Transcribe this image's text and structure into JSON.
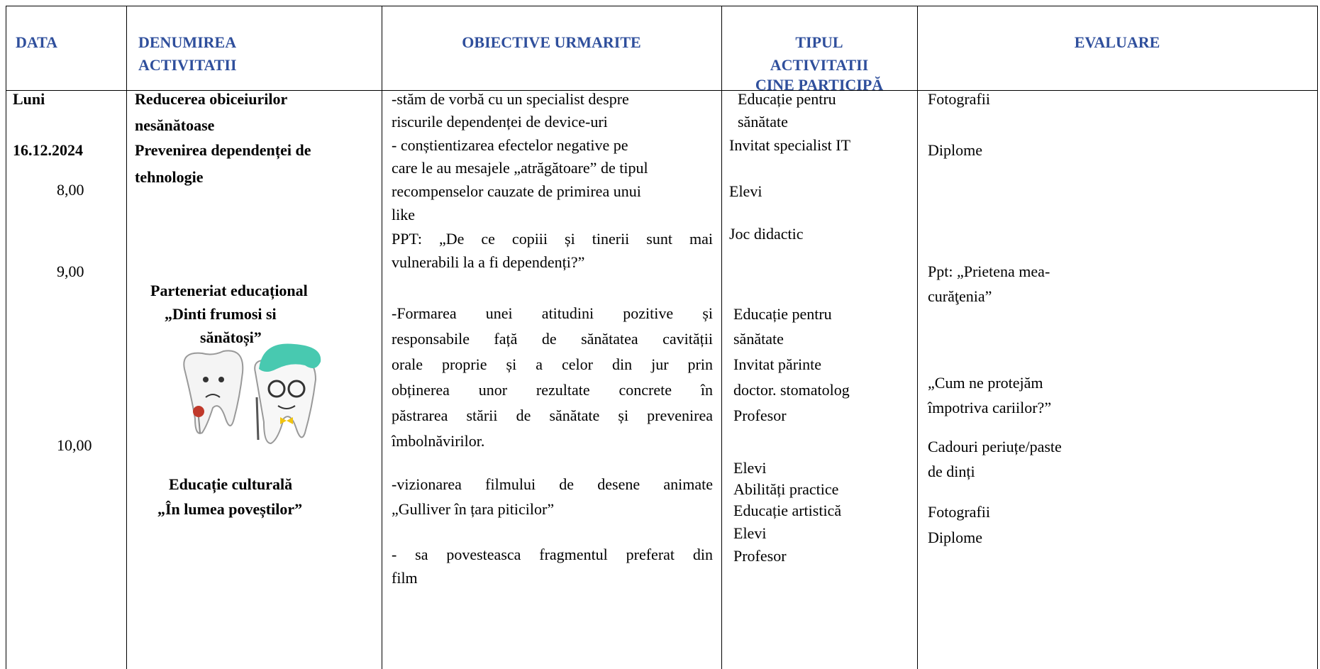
{
  "table": {
    "header": [
      [
        "DATA"
      ],
      [
        "DENUMIREA",
        "ACTIVITATII"
      ],
      [
        "OBIECTIVE URMARITE"
      ],
      [
        "TIPUL",
        "ACTIVITATII",
        "CINE PARTICIPĂ"
      ],
      [
        "EVALUARE"
      ]
    ],
    "rows": [
      [
        [
          "Luni",
          "16.12.2024",
          "8,00",
          "9,00",
          "10,00"
        ],
        [
          "Reducerea obiceiurilor",
          "nesănătoase",
          "Prevenirea dependenței de",
          "tehnologie",
          "Parteneriat educațional",
          "„Dinti frumosi si",
          "sănătoși”",
          "Educație culturală",
          "„În lumea poveștilor”"
        ],
        [
          "-stăm de vorbă cu un specialist despre",
          "riscurile dependenței de device-uri",
          "- conștientizarea efectelor negative pe",
          "care le au mesajele „atrăgătoare” de tipul",
          "recompenselor cauzate de primirea unui",
          "like",
          "PPT: „De ce copiii și tinerii sunt mai",
          "vulnerabili la a fi dependenți?”",
          "-Formarea unei atitudini pozitive și",
          "responsabile față de sănătatea cavității",
          "orale proprie și a celor din jur prin",
          "obținerea unor rezultate concrete în",
          "păstrarea stării de sănătate și prevenirea",
          "îmbolnăvirilor.",
          "-vizionarea filmului de desene animate",
          "„Gulliver în țara piticilor”",
          "- sa povesteasca fragmentul preferat din",
          "film"
        ],
        [
          "Educație pentru",
          "sănătate",
          "Invitat specialist IT",
          "Elevi",
          "Joc didactic",
          "Educație pentru",
          "sănătate",
          "Invitat părinte",
          "doctor. stomatolog",
          "Profesor",
          "Elevi",
          "Abilități practice",
          "Educație artistică",
          "Elevi",
          "Profesor"
        ],
        [
          "Fotografii",
          "Diplome",
          "Ppt: „Prietena mea-",
          "curăţenia”",
          "„Cum ne protejăm",
          "împotriva cariilor?”",
          "Cadouri periuțe/paste",
          "de dinți",
          "Fotografii",
          "Diplome"
        ]
      ]
    ]
  }
}
